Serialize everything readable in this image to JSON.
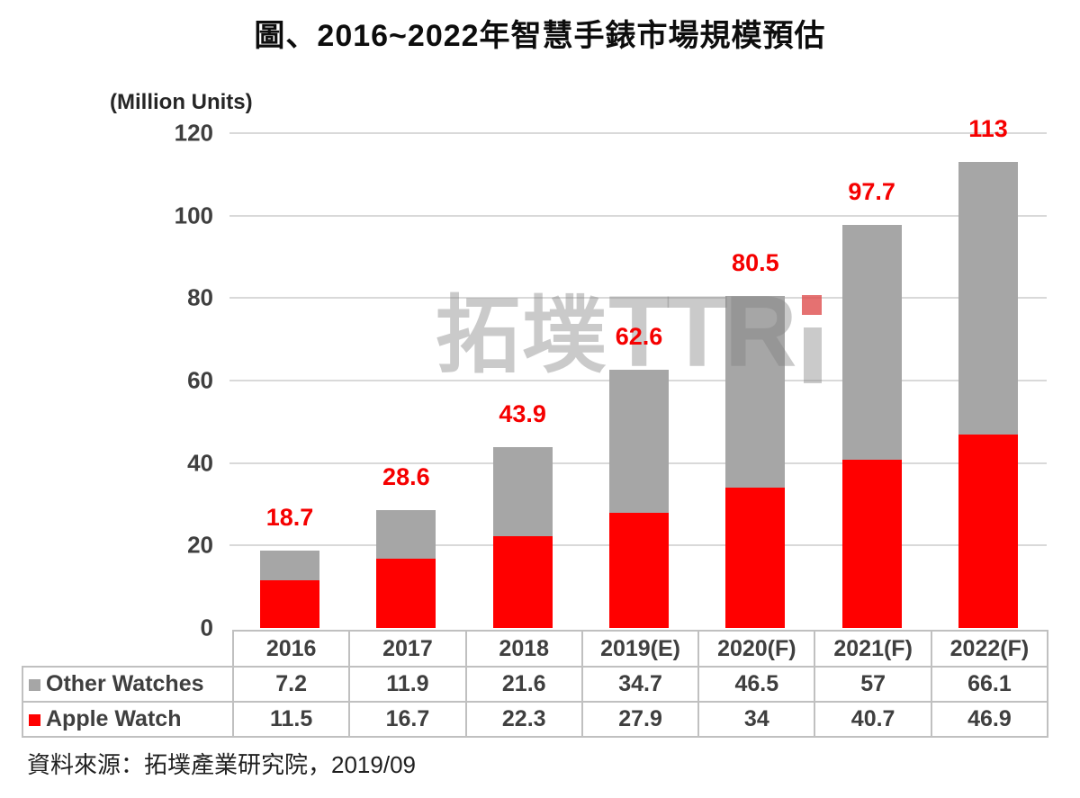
{
  "title": "圖、2016~2022年智慧手錶市場規模預估",
  "source_note": "資料來源：拓墣產業研究院，2019/09",
  "watermark": {
    "text": "拓墣TTRi"
  },
  "chart_data": {
    "type": "bar",
    "stacked": true,
    "title": "圖、2016~2022年智慧手錶市場規模預估",
    "unit_label": "(Million Units)",
    "categories": [
      "2016",
      "2017",
      "2018",
      "2019(E)",
      "2020(F)",
      "2021(F)",
      "2022(F)"
    ],
    "series": [
      {
        "name": "Other Watches",
        "color": "#a6a6a6",
        "values": [
          7.2,
          11.9,
          21.6,
          34.7,
          46.5,
          57,
          66.1
        ]
      },
      {
        "name": "Apple Watch",
        "color": "#ff0000",
        "values": [
          11.5,
          16.7,
          22.3,
          27.9,
          34,
          40.7,
          46.9
        ]
      }
    ],
    "totals": [
      18.7,
      28.6,
      43.9,
      62.6,
      80.5,
      97.7,
      113
    ],
    "total_label_color": "#f50000",
    "y_ticks": [
      0,
      20,
      40,
      60,
      80,
      100,
      120
    ],
    "ylim": [
      0,
      120
    ],
    "grid": "horizontal",
    "legend_position": "table-left"
  }
}
